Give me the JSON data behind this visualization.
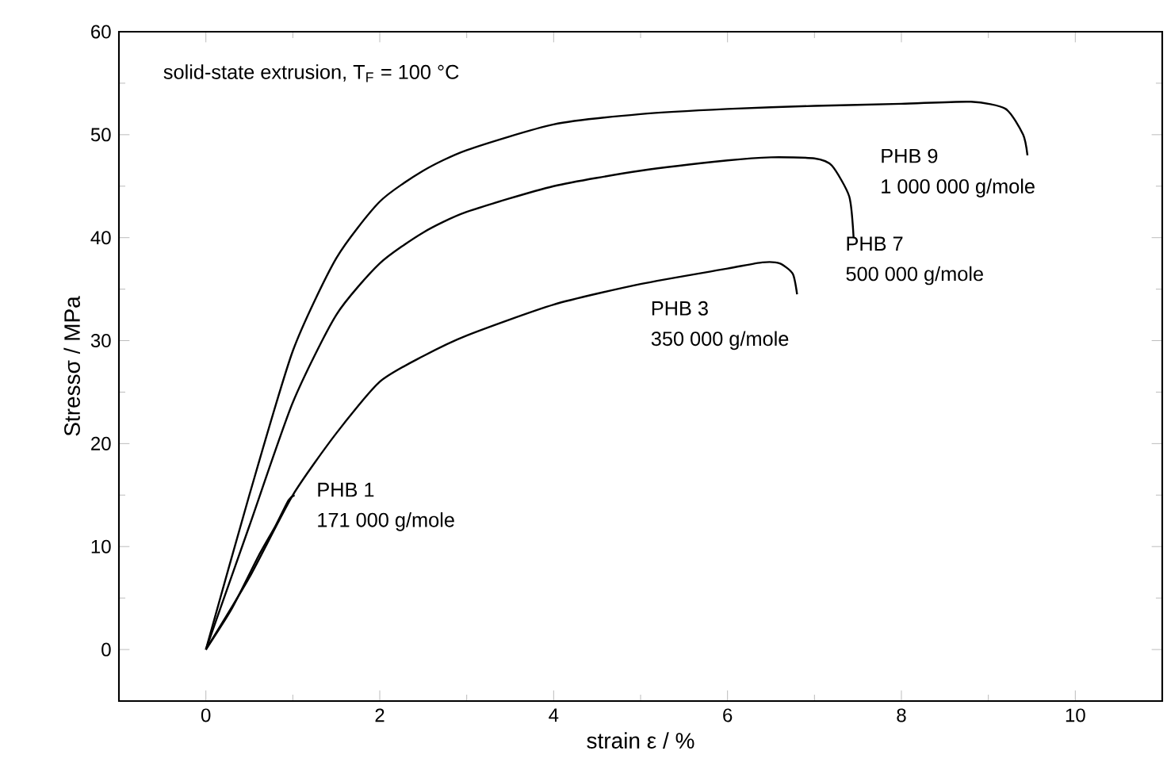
{
  "chart_data": {
    "type": "line",
    "xlabel": "strain ε / %",
    "ylabel": "Stressσ / MPa",
    "xlim": [
      -1,
      11
    ],
    "ylim": [
      -5,
      60
    ],
    "xticks": [
      0,
      2,
      4,
      6,
      8,
      10
    ],
    "yticks": [
      0,
      10,
      20,
      30,
      40,
      50,
      60
    ],
    "grid": false,
    "legend": false,
    "marker": "none",
    "line_style": "solid",
    "annotations": [
      "solid-state extrusion, T$_{F}$ = 100 °C",
      "1 000 000 g/mole",
      "500 000 g/mole",
      "350 000 g/mole",
      "171 000 g/mole"
    ],
    "series": [
      {
        "name": "PHB 9",
        "color": "#000000",
        "x": [
          0,
          0.5,
          1,
          1.5,
          2,
          2.5,
          3,
          4,
          5,
          6,
          7,
          8,
          8.8,
          9.2,
          9.4,
          9.45
        ],
        "values": [
          0,
          15,
          29,
          38,
          43.5,
          46.5,
          48.5,
          51,
          52,
          52.5,
          52.8,
          53,
          53.2,
          52.5,
          50,
          48
        ]
      },
      {
        "name": "PHB 7",
        "color": "#000000",
        "x": [
          0,
          0.5,
          1,
          1.5,
          2,
          2.5,
          3,
          4,
          5,
          6,
          6.5,
          7,
          7.2,
          7.4,
          7.45
        ],
        "values": [
          0,
          12,
          24,
          32.5,
          37.5,
          40.5,
          42.5,
          45,
          46.5,
          47.5,
          47.8,
          47.7,
          47,
          44,
          40
        ]
      },
      {
        "name": "PHB 3",
        "color": "#000000",
        "x": [
          0,
          0.5,
          1,
          1.5,
          2,
          2.5,
          3,
          4,
          5,
          6,
          6.4,
          6.6,
          6.75,
          6.8
        ],
        "values": [
          0,
          7,
          15,
          21,
          26,
          28.5,
          30.5,
          33.5,
          35.5,
          37,
          37.6,
          37.5,
          36.5,
          34.5
        ]
      },
      {
        "name": "PHB 1",
        "color": "#000000",
        "x": [
          0,
          0.3,
          0.6,
          0.8,
          0.95,
          1.02
        ],
        "values": [
          0,
          4,
          9,
          12,
          14.5,
          15
        ]
      }
    ]
  }
}
